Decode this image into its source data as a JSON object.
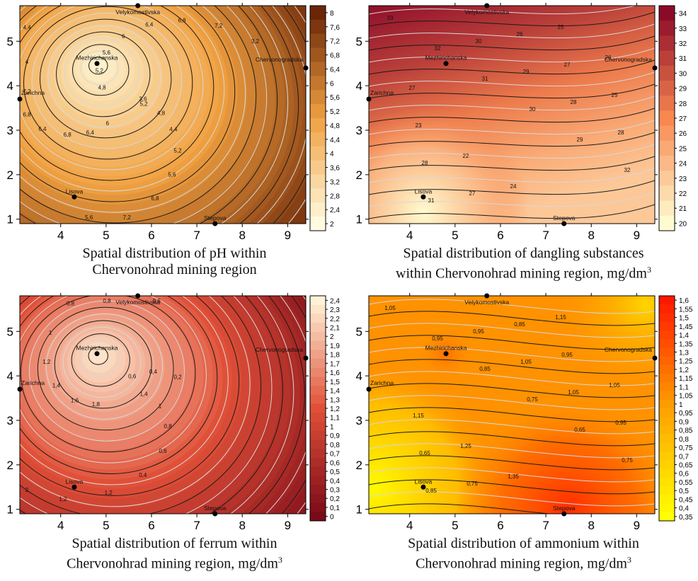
{
  "panels": [
    {
      "caption_line1": "Spatial distribution of pH within",
      "caption_line2": "Chervonohrad mining region",
      "caption_sup": "",
      "colormap": "copper-orange",
      "colors": {
        "low": "#fffbe0",
        "mid": "#f0a040",
        "high": "#6b2608"
      },
      "legend_ticks": [
        "8",
        "7,6",
        "7,2",
        "6,8",
        "6,4",
        "6",
        "5,6",
        "5,2",
        "4,8",
        "4,4",
        "4",
        "3,6",
        "3,2",
        "2,8",
        "2,4",
        "2"
      ],
      "contour_labels": [
        "5,2",
        "4,8",
        "4,4",
        "5,2",
        "5,6",
        "6,8",
        "7,2",
        "5,6",
        "6",
        "6,4",
        "6,8",
        "6,4",
        "6,8",
        "7,2",
        "4",
        "4,4",
        "4,8",
        "5,2",
        "5,6",
        "6",
        "6,4",
        "6,8",
        "7,2",
        "3,2",
        "3,6"
      ]
    },
    {
      "caption_line1": "Spatial distribution of dangling substances",
      "caption_line2": "within Chervonohrad mining region, mg/dm",
      "caption_sup": "3",
      "colormap": "yellow-red",
      "colors": {
        "low": "#fffbd0",
        "mid": "#f88850",
        "high": "#8b0a28"
      },
      "legend_ticks": [
        "34",
        "33",
        "32",
        "31",
        "30",
        "29",
        "28",
        "27",
        "26",
        "25",
        "24",
        "23",
        "22",
        "21",
        "20"
      ],
      "contour_labels": [
        "33",
        "32",
        "31",
        "30",
        "29",
        "32",
        "31",
        "30",
        "29",
        "28",
        "28",
        "28",
        "27",
        "26",
        "27",
        "25",
        "23",
        "22",
        "24",
        "25",
        "26",
        "27"
      ]
    },
    {
      "caption_line1": "Spatial distribution of ferrum within",
      "caption_line2": "Chervonohrad mining region, mg/dm",
      "caption_sup": "3",
      "colormap": "red-reverse",
      "colors": {
        "low": "#7a0a18",
        "mid": "#e05038",
        "high": "#fff2d8"
      },
      "legend_ticks": [
        "2,4",
        "2,3",
        "2,2",
        "2,1",
        "2",
        "1,9",
        "1,8",
        "1,7",
        "1,6",
        "1,5",
        "1,4",
        "1,3",
        "1,2",
        "1,1",
        "1",
        "0,9",
        "0,8",
        "0,7",
        "0,6",
        "0,5",
        "0,4",
        "0,3",
        "0,2",
        "0,1",
        "0"
      ],
      "contour_labels": [
        "1,4",
        "1",
        "0,8",
        "0,6",
        "0,4",
        "1,2",
        "1,2",
        "2",
        "1,8",
        "1,6",
        "1,4",
        "1,2",
        "1",
        "0,8",
        "0,8",
        "0,6",
        "0,6",
        "0,4",
        "0,2"
      ]
    },
    {
      "caption_line1": "Spatial distribution of ammonium within",
      "caption_line2": "Chervonohrad mining region, mg/dm",
      "caption_sup": "3",
      "colormap": "yellow-orange-red",
      "colors": {
        "low": "#ffff00",
        "mid": "#ffa000",
        "high": "#ff1800"
      },
      "legend_ticks": [
        "1,6",
        "1,55",
        "1,5",
        "1,45",
        "1,4",
        "1,35",
        "1,3",
        "1,25",
        "1,2",
        "1,15",
        "1,1",
        "1,05",
        "1",
        "0,95",
        "0,9",
        "0,85",
        "0,8",
        "0,75",
        "0,7",
        "0,65",
        "0,6",
        "0,55",
        "0,5",
        "0,45",
        "0,4",
        "0,35"
      ],
      "contour_labels": [
        "1,05",
        "0,95",
        "0,85",
        "0,75",
        "0,65",
        "0,75",
        "0,85",
        "0,95",
        "1,05",
        "1,05",
        "0,95",
        "0,65",
        "0,75",
        "0,85",
        "0,95",
        "1,05",
        "1,15",
        "1,25",
        "1,35",
        "1,15"
      ]
    }
  ],
  "chart_data": [
    {
      "type": "heatmap",
      "title": "Spatial distribution of pH within Chervonohrad mining region",
      "x_ticks": [
        "4",
        "5",
        "6",
        "7",
        "8",
        "9"
      ],
      "y_ticks": [
        "1",
        "2",
        "3",
        "4",
        "5"
      ],
      "xlim": [
        3.1,
        9.4
      ],
      "ylim": [
        0.9,
        5.8
      ],
      "colorbar_range": [
        2,
        8
      ],
      "stations": [
        {
          "name": "Velykomostivska",
          "x": 5.7,
          "y": 5.8
        },
        {
          "name": "Mezhirichanska",
          "x": 4.8,
          "y": 4.5
        },
        {
          "name": "Chervonogradska",
          "x": 9.4,
          "y": 4.4
        },
        {
          "name": "Zarichna",
          "x": 3.1,
          "y": 3.7
        },
        {
          "name": "Lisova",
          "x": 4.3,
          "y": 1.5
        },
        {
          "name": "Stepova",
          "x": 7.4,
          "y": 0.9
        }
      ],
      "min_location": {
        "x": 4.8,
        "y": 4.5,
        "value": 2.2
      },
      "background_value": 7.4
    },
    {
      "type": "heatmap",
      "title": "Spatial distribution of dangling substances within Chervonohrad mining region, mg/dm3",
      "x_ticks": [
        "4",
        "5",
        "6",
        "7",
        "8",
        "9"
      ],
      "y_ticks": [
        "1",
        "2",
        "3",
        "4",
        "5"
      ],
      "xlim": [
        3.1,
        9.4
      ],
      "ylim": [
        0.9,
        5.8
      ],
      "colorbar_range": [
        20,
        34.5
      ],
      "stations": [
        {
          "name": "Velykomostivska",
          "x": 5.7,
          "y": 5.8
        },
        {
          "name": "Mezhirichanska",
          "x": 4.8,
          "y": 4.5
        },
        {
          "name": "Chervonogradska",
          "x": 9.4,
          "y": 4.4
        },
        {
          "name": "Zarichna",
          "x": 3.1,
          "y": 3.7
        },
        {
          "name": "Lisova",
          "x": 4.3,
          "y": 1.5
        },
        {
          "name": "Stepova",
          "x": 7.4,
          "y": 0.9
        }
      ],
      "max_location": {
        "x": 3.4,
        "y": 5.6,
        "value": 34.5
      },
      "min_location": {
        "x": 4.3,
        "y": 1.2,
        "value": 20.5
      }
    },
    {
      "type": "heatmap",
      "title": "Spatial distribution of ferrum within Chervonohrad mining region, mg/dm3",
      "x_ticks": [
        "4",
        "5",
        "6",
        "7",
        "8",
        "9"
      ],
      "y_ticks": [
        "1",
        "2",
        "3",
        "4",
        "5"
      ],
      "xlim": [
        3.1,
        9.4
      ],
      "ylim": [
        0.9,
        5.8
      ],
      "colorbar_range": [
        0,
        2.5
      ],
      "stations": [
        {
          "name": "Velykomostivska",
          "x": 5.7,
          "y": 5.8
        },
        {
          "name": "Mezhirichanska",
          "x": 4.8,
          "y": 4.5
        },
        {
          "name": "Chervonogradska",
          "x": 9.4,
          "y": 4.4
        },
        {
          "name": "Zarichna",
          "x": 3.1,
          "y": 3.7
        },
        {
          "name": "Lisova",
          "x": 4.3,
          "y": 1.5
        },
        {
          "name": "Stepova",
          "x": 7.4,
          "y": 0.9
        }
      ],
      "max_location": {
        "x": 4.8,
        "y": 4.5,
        "value": 2.4
      }
    },
    {
      "type": "heatmap",
      "title": "Spatial distribution of ammonium within Chervonohrad mining region, mg/dm3",
      "x_ticks": [
        "4",
        "5",
        "6",
        "7",
        "8",
        "9"
      ],
      "y_ticks": [
        "1",
        "2",
        "3",
        "4",
        "5"
      ],
      "xlim": [
        3.1,
        9.4
      ],
      "ylim": [
        0.9,
        5.8
      ],
      "colorbar_range": [
        0.35,
        1.6
      ],
      "stations": [
        {
          "name": "Velykomostivska",
          "x": 5.7,
          "y": 5.8
        },
        {
          "name": "Mezhirichanska",
          "x": 4.8,
          "y": 4.5
        },
        {
          "name": "Chervonogradska",
          "x": 9.4,
          "y": 4.4
        },
        {
          "name": "Zarichna",
          "x": 3.1,
          "y": 3.7
        },
        {
          "name": "Lisova",
          "x": 4.3,
          "y": 1.5
        },
        {
          "name": "Stepova",
          "x": 7.4,
          "y": 0.9
        }
      ],
      "max_location": {
        "x": 7.5,
        "y": 1.0,
        "value": 1.5
      },
      "min_location": {
        "x": 3.2,
        "y": 1.6,
        "value": 0.38
      }
    }
  ]
}
